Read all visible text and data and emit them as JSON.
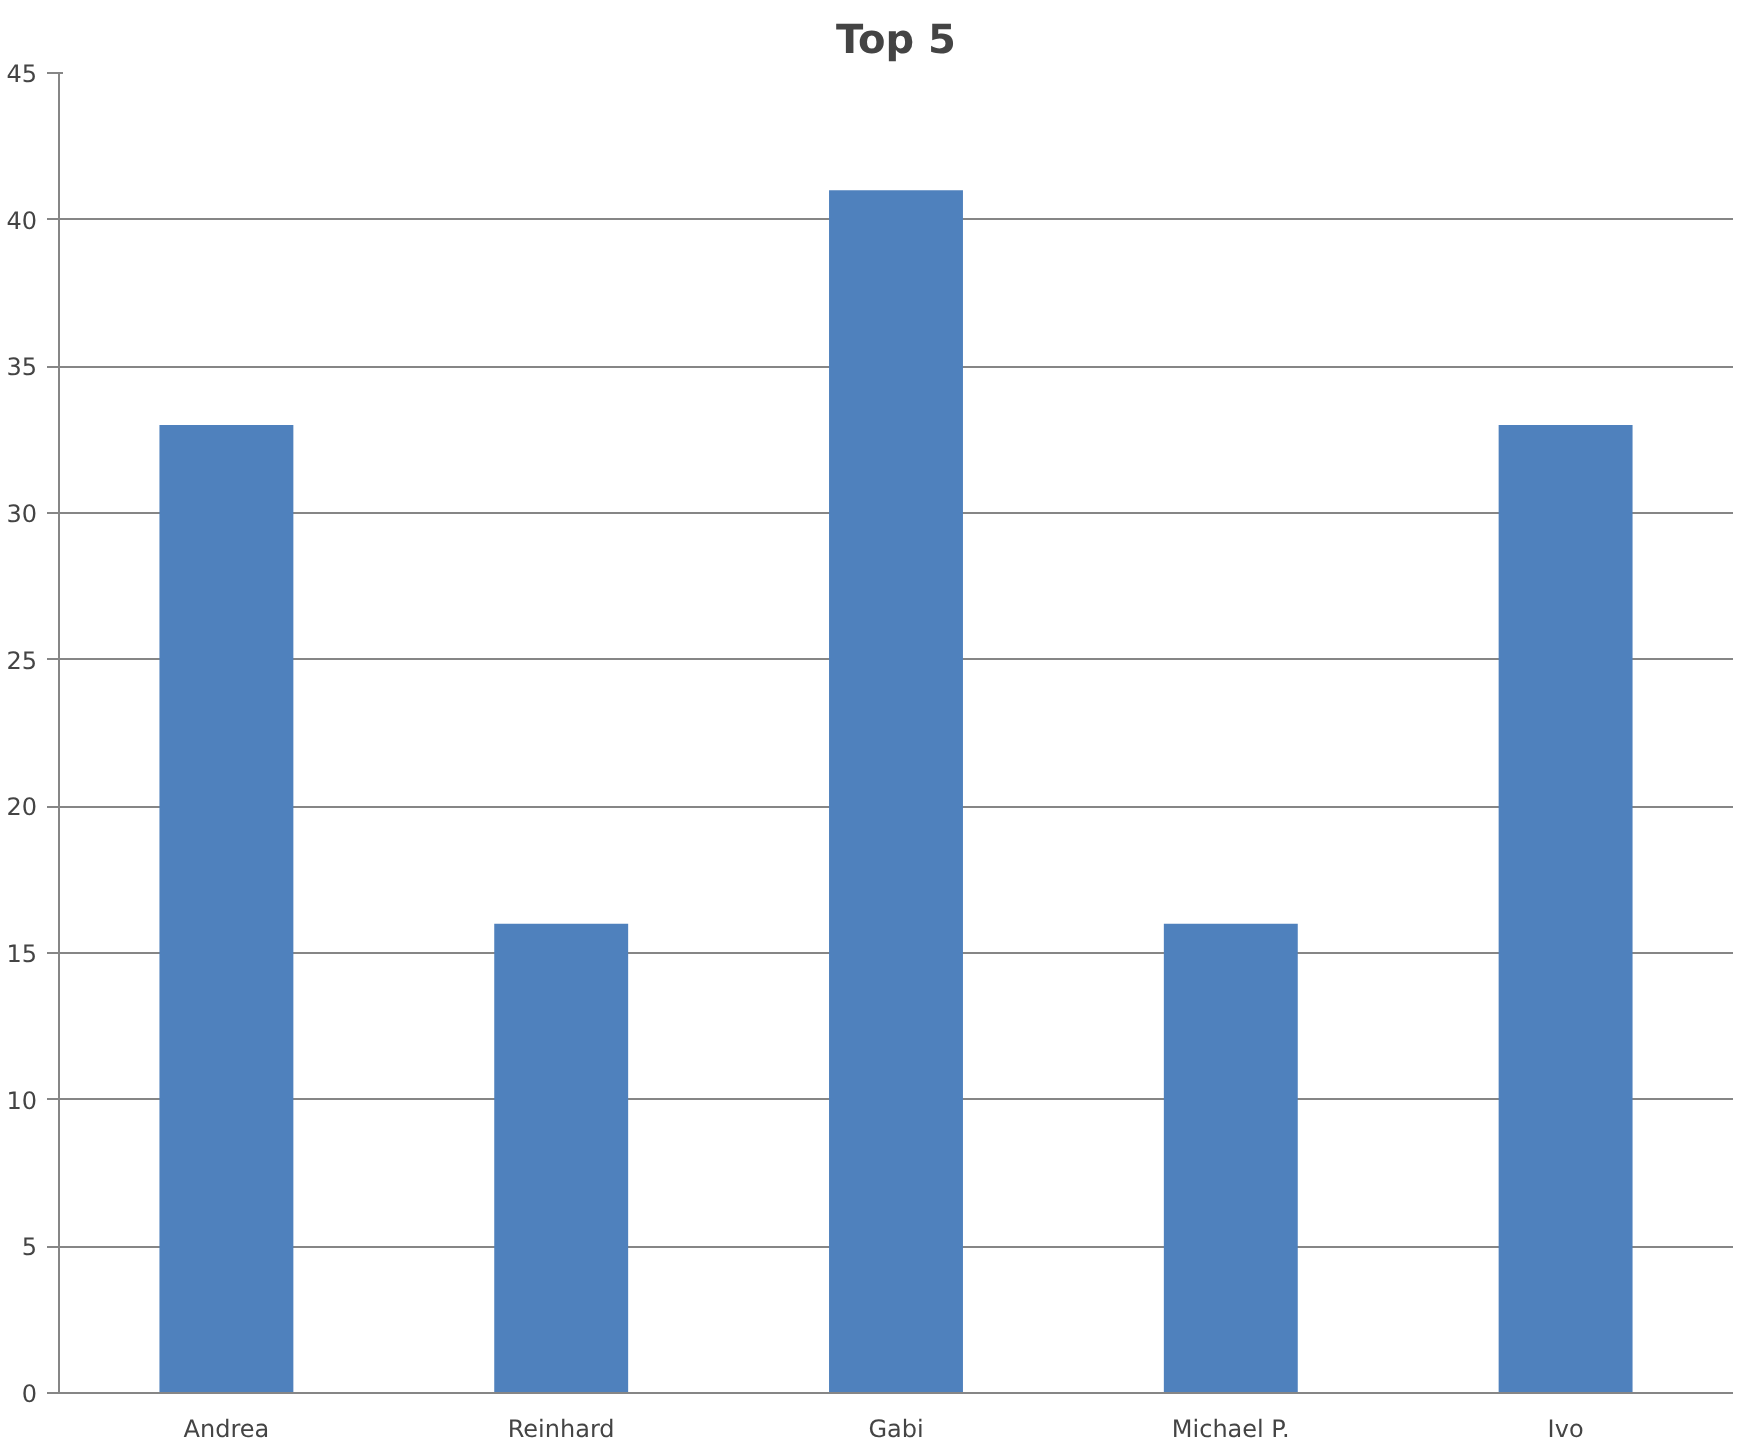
{
  "chart_data": {
    "type": "bar",
    "title": "Top 5",
    "categories": [
      "Andrea",
      "Reinhard",
      "Gabi",
      "Michael P.",
      "Ivo"
    ],
    "values": [
      33,
      16,
      41,
      16,
      33
    ],
    "color": "#4f81bd",
    "ylim": [
      0,
      45
    ],
    "yticks": [
      0,
      5,
      10,
      15,
      20,
      25,
      30,
      35,
      40,
      45
    ],
    "grid": "y"
  }
}
